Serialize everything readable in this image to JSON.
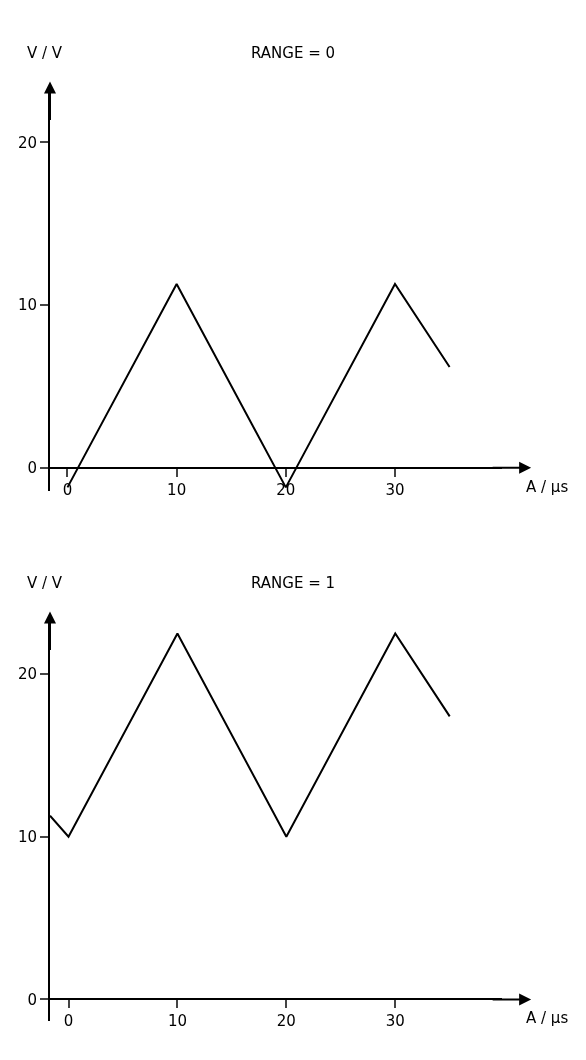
{
  "chart_data": [
    {
      "type": "line",
      "title": "RANGE = 0",
      "xlabel": "A / µs",
      "ylabel": "V / V",
      "x": [
        0,
        10,
        20,
        30,
        35
      ],
      "series": [
        {
          "color": "#000000",
          "values": [
            -1.2,
            11.3,
            -1.2,
            11.3,
            6.2
          ]
        }
      ],
      "xlim": [
        -1.6,
        39.8
      ],
      "ylim": [
        -1.4,
        23.3
      ],
      "xticks": [
        0,
        10,
        20,
        30
      ],
      "yticks": [
        0,
        10,
        20
      ],
      "grid": false,
      "marker": "none",
      "line_style": "solid"
    },
    {
      "type": "line",
      "title": "RANGE = 1",
      "xlabel": "A / µs",
      "ylabel": "V / V",
      "x": [
        -1.7,
        0,
        10,
        20,
        30,
        35
      ],
      "series": [
        {
          "color": "#000000",
          "values": [
            11.3,
            10,
            22.5,
            10,
            22.5,
            17.4
          ]
        }
      ],
      "xlim": [
        -1.7,
        39.8
      ],
      "ylim": [
        -1.3,
        23.4
      ],
      "xticks": [
        0,
        10,
        20,
        30
      ],
      "yticks": [
        0,
        10,
        20
      ],
      "grid": false,
      "marker": "none",
      "line_style": "solid"
    }
  ]
}
